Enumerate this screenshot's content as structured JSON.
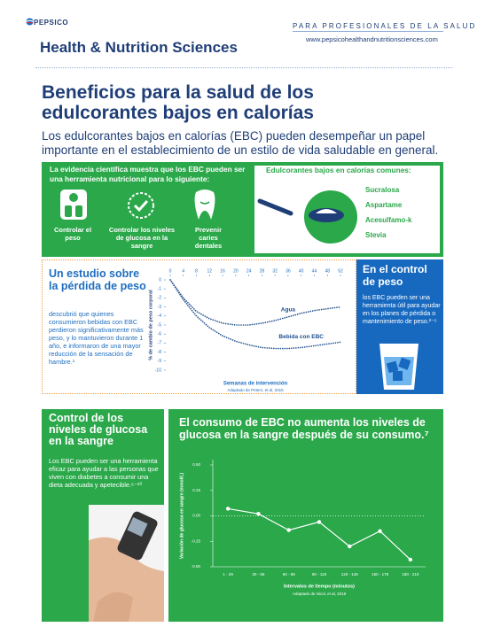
{
  "header": {
    "logo": "PEPSICO",
    "brand": "Health & Nutrition Sciences",
    "audience": "PARA PROFESIONALES DE LA SALUD",
    "url": "www.pepsicohealthandnutritionsciences.com"
  },
  "title": "Beneficios para la salud de los edulcorantes bajos en calorías",
  "intro": "Los edulcorantes bajos en calorías (EBC) pueden desempeñar un papel importante en el establecimiento de un estilo de vida saludable en general.",
  "evidence": {
    "heading": "La evidencia científica muestra que los EBC pueden ser una herramienta nutricional para lo siguiente:",
    "items": [
      "Controlar el peso",
      "Controlar los niveles de glucosa en la sangre",
      "Prevenir caries dentales"
    ]
  },
  "sweeteners": {
    "heading": "Edulcorantes bajos en calorías comunes:",
    "items": [
      "Sucralosa",
      "Aspartame",
      "Acesulfamo-k",
      "Stevia"
    ]
  },
  "study": {
    "heading": "Un estudio sobre la pérdida de peso",
    "text": "descubrió que quienes consumieron bebidas con EBC perdieron significativamente más peso, y lo mantuvieron durante 1 año, e informaron de una mayor reducción de la sensación de hambre.¹"
  },
  "weight_chart": {
    "type": "line",
    "x": [
      0,
      4,
      8,
      12,
      16,
      20,
      24,
      28,
      32,
      36,
      40,
      44,
      48,
      52
    ],
    "series": [
      {
        "name": "Agua",
        "color": "#1e4f8f",
        "values": [
          0,
          -2,
          -3.5,
          -4.3,
          -4.8,
          -5,
          -5,
          -4.8,
          -4.5,
          -4.1,
          -3.7,
          -3.4,
          -3.2,
          -3
        ]
      },
      {
        "name": "Bebida con EBC",
        "color": "#1e4f8f",
        "values": [
          0,
          -2.2,
          -4,
          -5.3,
          -6.2,
          -6.8,
          -7.2,
          -7.5,
          -7.6,
          -7.6,
          -7.5,
          -7.3,
          -7.1,
          -6.9
        ]
      }
    ],
    "xlim": [
      0,
      52
    ],
    "xticks": [
      0,
      4,
      8,
      12,
      16,
      20,
      24,
      28,
      32,
      36,
      40,
      44,
      48,
      52
    ],
    "ylim": [
      -10,
      0
    ],
    "yticks": [
      0,
      -1,
      -2,
      -3,
      -4,
      -5,
      -6,
      -7,
      -8,
      -9,
      -10
    ],
    "ylabel": "% de cambio de peso corporal",
    "xlabel": "Semanas de intervención",
    "source": "Adaptado de Peters, et al, 2016"
  },
  "weight_control": {
    "heading": "En el control de peso",
    "text": "los EBC pueden ser una herramienta útil para ayudar en los planes de pérdida o mantenimiento de peso.²⁻⁵"
  },
  "glucose": {
    "heading": "Control de los niveles de glucosa en la sangre",
    "text": "Los EBC pueden ser una herramienta eficaz para ayudar a las personas que viven con diabetes a consumir una dieta adecuada y apetecible.⁶⁻¹⁰"
  },
  "glucose_chart": {
    "type": "line",
    "title": "El consumo de EBC no aumenta los niveles de glucosa en la sangre después de su consumo.⁷",
    "categories": [
      "1 - 29",
      "30 - 59",
      "60 - 89",
      "90 - 119",
      "120 - 149",
      "150 - 179",
      "180 - 210"
    ],
    "values": [
      0.07,
      0.02,
      -0.14,
      -0.06,
      -0.3,
      -0.15,
      -0.43
    ],
    "color": "#ffffff",
    "ylim": [
      -0.5,
      0.5
    ],
    "yticks": [
      {
        "value": 0.5,
        "label": "0.50"
      },
      0.25,
      {
        "value": 0,
        "label": "0.00"
      },
      -0.25,
      {
        "value": -0.5,
        "label": "-0.50"
      }
    ],
    "ylabel": "Variación de glucosa en sangre (mmol/L)",
    "xlabel": "Intervalos de tiempo (minutos)",
    "source": "Adaptado de Nicol, et al, 2018"
  }
}
